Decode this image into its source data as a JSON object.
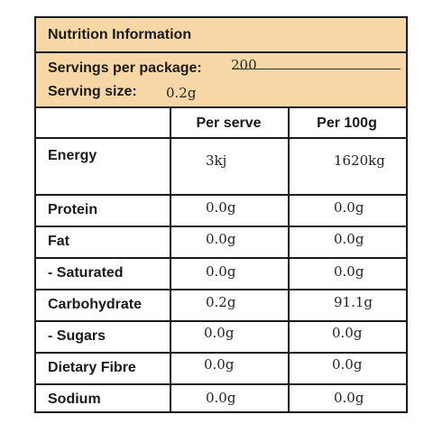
{
  "title": "Nutrition Information",
  "servings": {
    "per_package_label": "Servings per package:",
    "per_package_value": "200",
    "size_label": "Serving size:",
    "size_value": "0.2g"
  },
  "columns": {
    "per_serve": "Per serve",
    "per_100g": "Per 100g"
  },
  "rows": [
    {
      "label": "Energy",
      "per_serve": "3kj",
      "per_100g": "1620kg"
    },
    {
      "label": "Protein",
      "per_serve": "0.0g",
      "per_100g": "0.0g"
    },
    {
      "label": "Fat",
      "per_serve": "0.0g",
      "per_100g": "0.0g"
    },
    {
      "label": "- Saturated",
      "per_serve": "0.0g",
      "per_100g": "0.0g"
    },
    {
      "label": "Carbohydrate",
      "per_serve": "0.2g",
      "per_100g": "91.1g"
    },
    {
      "label": "- Sugars",
      "per_serve": "0.0g",
      "per_100g": "0.0g"
    },
    {
      "label": "Dietary Fibre",
      "per_serve": "0.0g",
      "per_100g": "0.0g"
    },
    {
      "label": "Sodium",
      "per_serve": "0.0g",
      "per_100g": "0.0g"
    }
  ],
  "colors": {
    "header_band": "#f8d7a6",
    "border": "#1a1a1a"
  }
}
